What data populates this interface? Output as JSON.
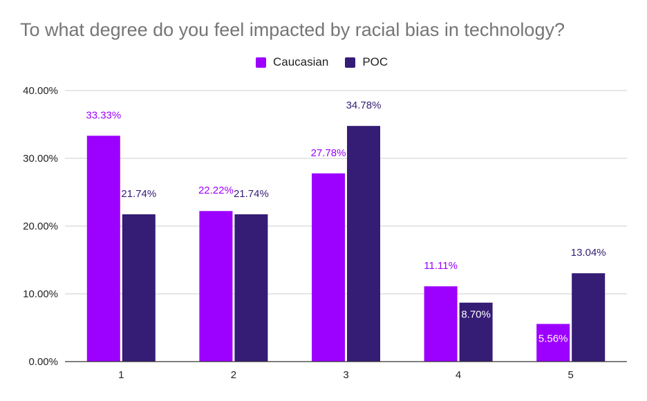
{
  "chart_data": {
    "type": "bar",
    "title": "To what degree do you feel impacted by racial bias in technology?",
    "categories": [
      "1",
      "2",
      "3",
      "4",
      "5"
    ],
    "series": [
      {
        "name": "Caucasian",
        "color": "#9c00ff",
        "values": [
          33.33,
          22.22,
          27.78,
          11.11,
          5.56
        ],
        "labels": [
          "33.33%",
          "22.22%",
          "27.78%",
          "11.11%",
          "5.56%"
        ]
      },
      {
        "name": "POC",
        "color": "#351c75",
        "values": [
          21.74,
          21.74,
          34.78,
          8.7,
          13.04
        ],
        "labels": [
          "21.74%",
          "21.74%",
          "34.78%",
          "8.70%",
          "13.04%"
        ]
      }
    ],
    "ylim": [
      0,
      40
    ],
    "yticks": [
      0,
      10,
      20,
      30,
      40
    ],
    "ytick_labels": [
      "0.00%",
      "10.00%",
      "20.00%",
      "30.00%",
      "40.00%"
    ],
    "grid": true,
    "legend_position": "top-center"
  }
}
